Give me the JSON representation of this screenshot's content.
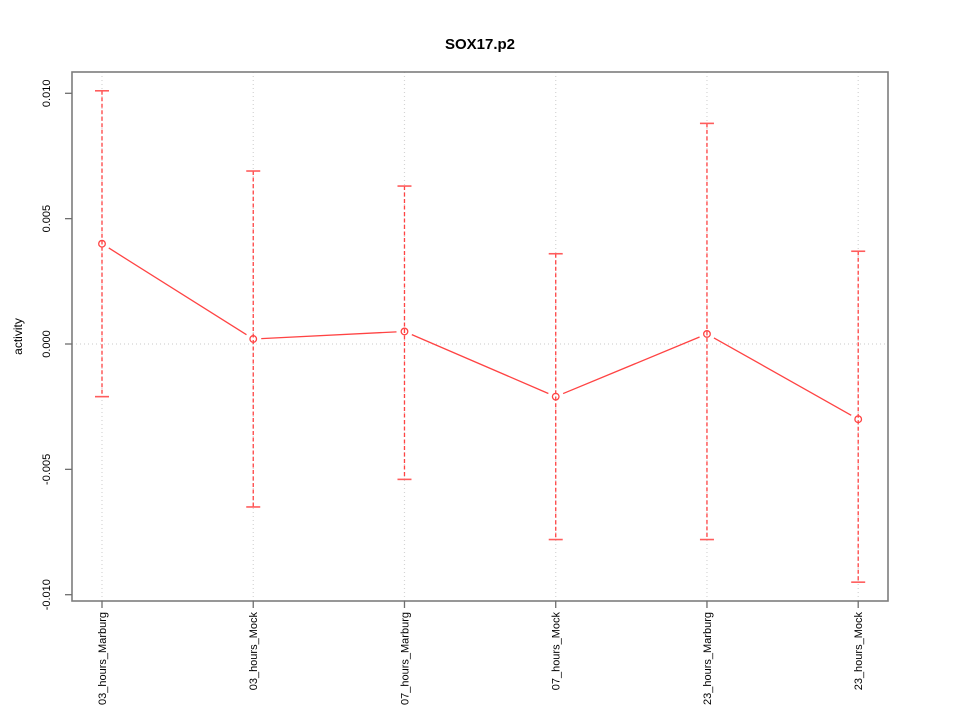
{
  "figure": {
    "title": "SOX17.p2"
  },
  "chart_data": {
    "type": "line",
    "subtype": "means-with-error-bars",
    "title": "SOX17.p2",
    "xlabel": "",
    "ylabel": "activity",
    "categories": [
      "03_hours_Marburg",
      "03_hours_Mock",
      "07_hours_Marburg",
      "07_hours_Mock",
      "23_hours_Marburg",
      "23_hours_Mock"
    ],
    "series": [
      {
        "name": "activity",
        "means": [
          0.004,
          0.0002,
          0.0005,
          -0.0021,
          0.0004,
          -0.003
        ],
        "upper": [
          0.0101,
          0.0069,
          0.0063,
          0.0036,
          0.0088,
          0.0037
        ],
        "lower": [
          -0.0021,
          -0.0065,
          -0.0054,
          -0.0078,
          -0.0078,
          -0.0095
        ]
      }
    ],
    "ylim": [
      -0.0103,
      0.0109
    ],
    "yticks": [
      0.01,
      0.005,
      0.0,
      -0.005,
      -0.01
    ],
    "ytick_labels": [
      "0.010",
      "0.005",
      "0.000",
      "-0.005",
      "-0.010"
    ],
    "legend": "none",
    "grid": {
      "vertical_at_categories": true,
      "horizontal_at_zero": true,
      "line_style": "dotted",
      "color": "#d4d4d4"
    },
    "marker": "open-circle",
    "error_bar_style": "dashed-vertical-with-caps",
    "colors": {
      "series": "#ff4343",
      "error_cap": "#ff5c5c",
      "box": "#7d7d7d",
      "tick": "#6e6e6e",
      "text": "#000000",
      "grid": "#d4d4d4"
    }
  }
}
